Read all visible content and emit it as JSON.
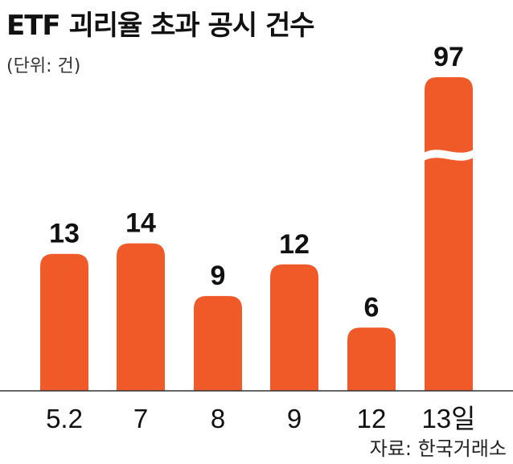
{
  "header": {
    "title": "ETF 괴리율 초과 공시 건수",
    "unit": "(단위: 건)"
  },
  "footer": {
    "source": "자료: 한국거래소"
  },
  "colors": {
    "bar": "#f05a28",
    "axis": "#333333"
  },
  "chart_data": {
    "type": "bar",
    "title": "ETF 괴리율 초과 공시 건수",
    "unit": "(단위: 건)",
    "categories": [
      "5.2",
      "7",
      "8",
      "9",
      "12",
      "13일"
    ],
    "values": [
      13,
      14,
      9,
      12,
      6,
      97
    ],
    "axis_break": {
      "bar_index": 5,
      "note": "last bar drawn with a scale break"
    },
    "xlabel": "",
    "ylabel": "",
    "ylim": [
      0,
      20
    ],
    "grid": false,
    "legend": "none"
  }
}
